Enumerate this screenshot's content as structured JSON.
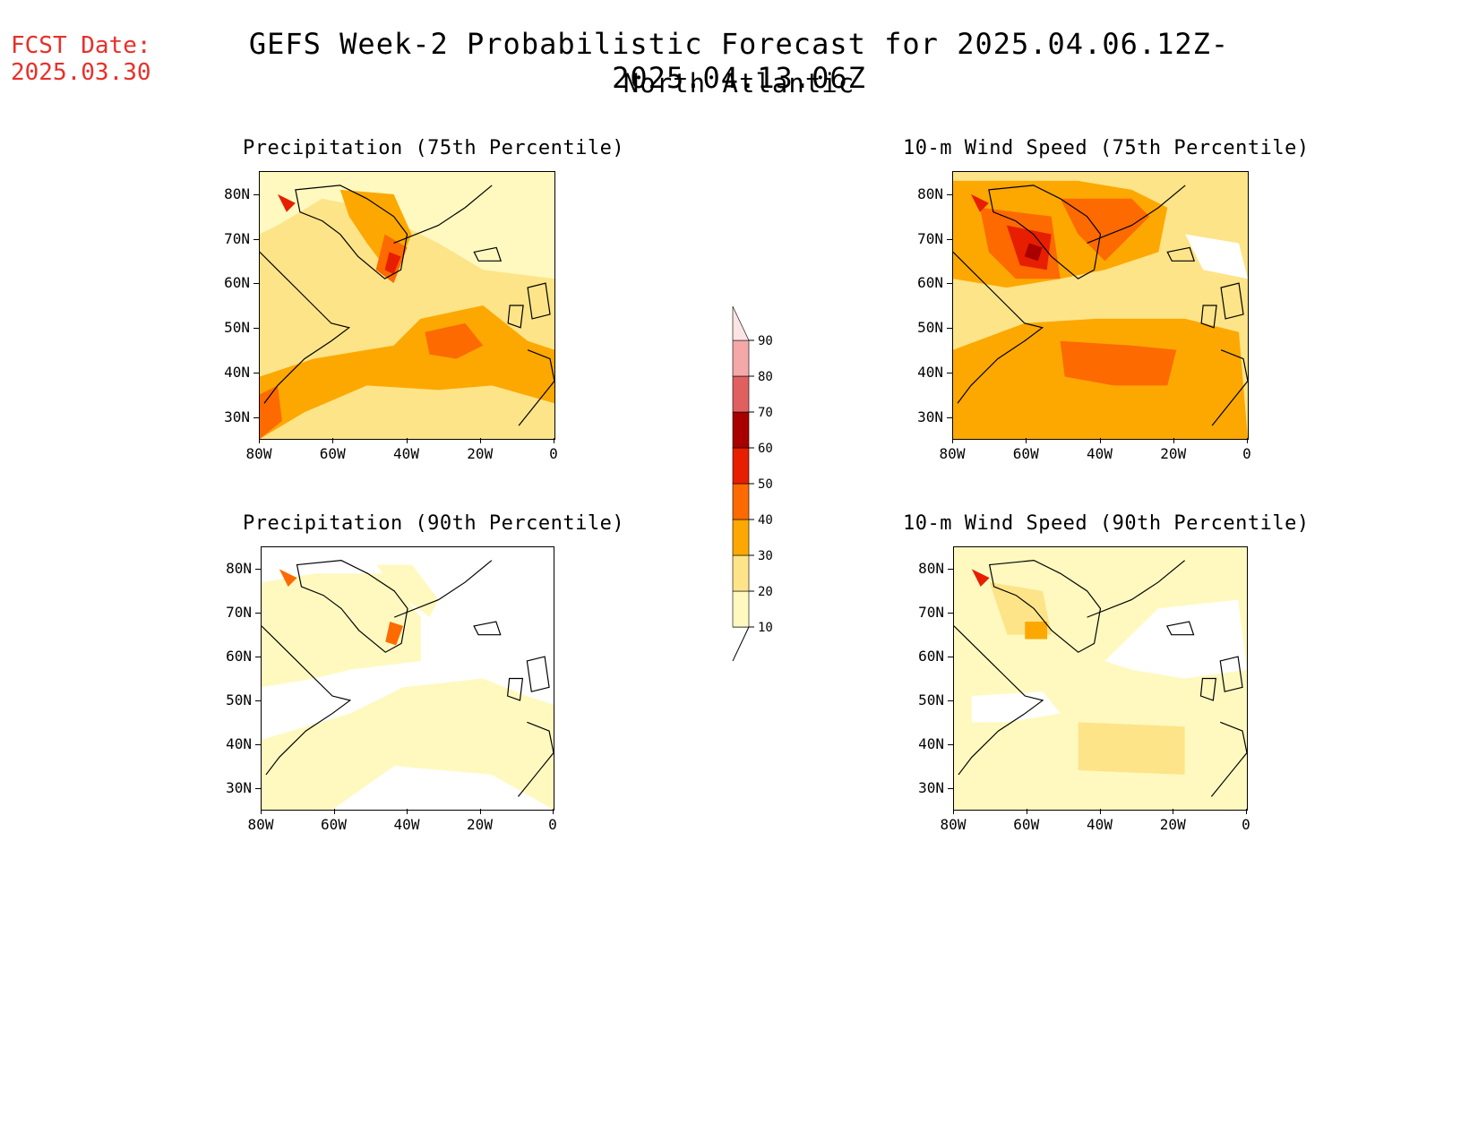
{
  "header": {
    "fcst_label": "FCST Date:",
    "fcst_date": "2025.03.30",
    "title": "GEFS Week-2 Probabilistic Forecast for 2025.04.06.12Z-2025.04.13.06Z",
    "subtitle": "North Atlantic"
  },
  "panels": [
    {
      "title": "Precipitation (75th Percentile)"
    },
    {
      "title": "10-m Wind Speed (75th Percentile)"
    },
    {
      "title": "Precipitation (90th Percentile)"
    },
    {
      "title": "10-m Wind Speed (90th Percentile)"
    }
  ],
  "axes": {
    "lat_labels": [
      "80N",
      "70N",
      "60N",
      "50N",
      "40N",
      "30N"
    ],
    "lon_labels": [
      "80W",
      "60W",
      "40W",
      "20W",
      "0"
    ]
  },
  "colorbar": {
    "levels": [
      "10",
      "20",
      "30",
      "40",
      "50",
      "60",
      "70",
      "80",
      "90"
    ],
    "colors": [
      "#fff9c0",
      "#fde488",
      "#fda800",
      "#fd6a00",
      "#e81e00",
      "#a80000",
      "#e06060",
      "#f4a8a8",
      "#fde4e4"
    ]
  }
}
